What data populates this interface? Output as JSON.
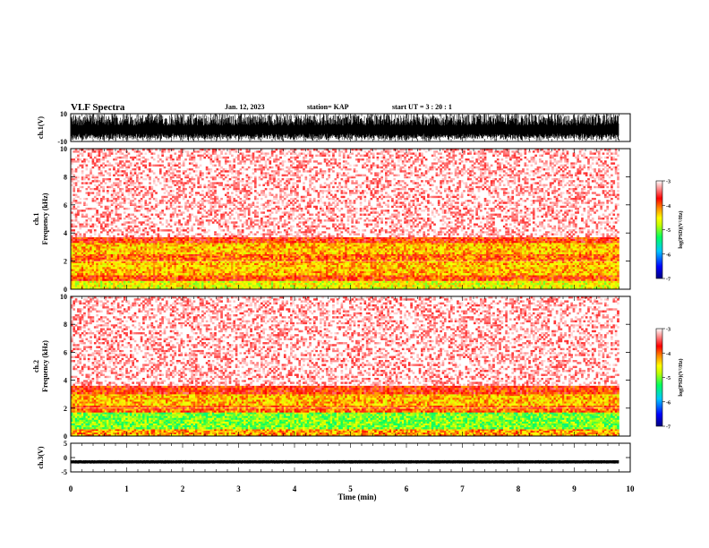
{
  "header": {
    "title": "VLF Spectra",
    "date": "Jan. 12, 2023",
    "station": "station= KAP",
    "start_ut": "start  UT  =   3  : 20 : 1"
  },
  "chart_data": [
    {
      "type": "line",
      "panel": "ch1-waveform",
      "ylabel": "ch.1(V)",
      "ylim": [
        -10,
        10
      ],
      "y_ticks": [
        "10",
        "-10"
      ],
      "xlim": [
        0,
        10
      ],
      "x_data_end": 9.8,
      "description_values": {
        "amplitude_min": -10,
        "amplitude_max": 10
      }
    },
    {
      "type": "heatmap",
      "panel": "ch1-spectrogram",
      "ylabel": "ch.1\nFrequency (kHz)",
      "ylabel_lines": [
        "ch.1",
        "Frequency (kHz)"
      ],
      "ylim": [
        0,
        10
      ],
      "y_ticks": [
        "0",
        "2",
        "4",
        "6",
        "8",
        "10"
      ],
      "xlim": [
        0,
        10
      ],
      "x_data_end": 9.8,
      "bands": [
        {
          "from": 0.0,
          "to": 0.6,
          "level": -4.6
        },
        {
          "from": 0.6,
          "to": 1.0,
          "level": -3.9
        },
        {
          "from": 1.0,
          "to": 2.0,
          "level": -4.3
        },
        {
          "from": 2.0,
          "to": 2.5,
          "level": -4.0
        },
        {
          "from": 2.5,
          "to": 3.3,
          "level": -4.3
        },
        {
          "from": 3.3,
          "to": 3.7,
          "level": -3.8
        },
        {
          "from": 3.7,
          "to": 10.0,
          "level": -3.3
        }
      ],
      "colorbar": {
        "min": -7,
        "max": -3,
        "ticks": [
          "-3",
          "-4",
          "-5",
          "-6",
          "-7"
        ],
        "label": "log(PSD)(V²/Hz)"
      }
    },
    {
      "type": "heatmap",
      "panel": "ch2-spectrogram",
      "ylabel": "ch.2\nFrequency (kHz)",
      "ylabel_lines": [
        "ch.2",
        "Frequency (kHz)"
      ],
      "ylim": [
        0,
        10
      ],
      "y_ticks": [
        "0",
        "2",
        "4",
        "6",
        "8",
        "10"
      ],
      "xlim": [
        0,
        10
      ],
      "x_data_end": 9.8,
      "bands": [
        {
          "from": 0.0,
          "to": 0.5,
          "level": -4.2
        },
        {
          "from": 0.5,
          "to": 1.7,
          "level": -5.0
        },
        {
          "from": 1.7,
          "to": 2.2,
          "level": -4.0
        },
        {
          "from": 2.2,
          "to": 3.0,
          "level": -4.3
        },
        {
          "from": 3.0,
          "to": 3.6,
          "level": -3.8
        },
        {
          "from": 3.6,
          "to": 10.0,
          "level": -3.3
        }
      ],
      "colorbar": {
        "min": -7,
        "max": -3,
        "ticks": [
          "-3",
          "-4",
          "-5",
          "-6",
          "-7"
        ],
        "label": "log(PSD)(V²/Hz)"
      }
    },
    {
      "type": "line",
      "panel": "ch3-waveform",
      "ylabel": "ch.3(V)",
      "ylim": [
        -5,
        5
      ],
      "y_ticks": [
        "5",
        "0",
        "-5"
      ],
      "xlim": [
        0,
        10
      ],
      "x_data_end": 9.8,
      "signal_center": -1.5,
      "signal_halfwidth": 0.6
    }
  ],
  "x_axis": {
    "label": "Time (min)",
    "ticks": [
      "0",
      "1",
      "2",
      "3",
      "4",
      "5",
      "6",
      "7",
      "8",
      "9",
      "10"
    ]
  },
  "colors": {
    "colormap": [
      "#000080",
      "#0000ff",
      "#00c8ff",
      "#00ff60",
      "#c8ff00",
      "#ffff00",
      "#ff8c00",
      "#ff0000",
      "#ffffff"
    ],
    "trace": "#000000"
  }
}
